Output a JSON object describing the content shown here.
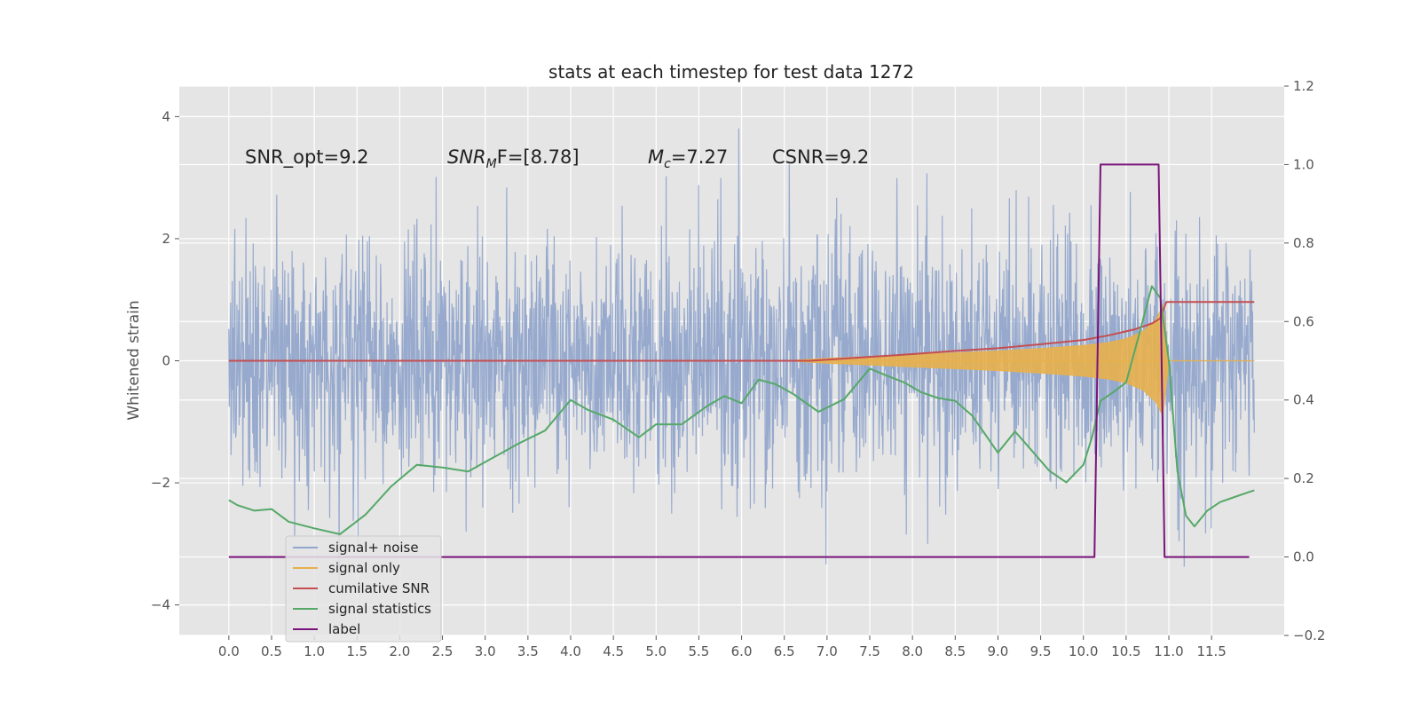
{
  "chart_data": {
    "type": "line",
    "title": "stats at each timestep for test data 1272",
    "ylabel": "Whitened strain",
    "xlabel": "",
    "xlim": [
      -0.58,
      12.35
    ],
    "ylim": [
      -4.5,
      4.5
    ],
    "y2lim": [
      -0.2,
      1.2
    ],
    "grid": true,
    "legend_position": "lower-left",
    "x_ticks": [
      "0.0",
      "0.5",
      "1.0",
      "1.5",
      "2.0",
      "2.5",
      "3.0",
      "3.5",
      "4.0",
      "4.5",
      "5.0",
      "5.5",
      "6.0",
      "6.5",
      "7.0",
      "7.5",
      "8.0",
      "8.5",
      "9.0",
      "9.5",
      "10.0",
      "10.5",
      "11.0",
      "11.5"
    ],
    "y_ticks": [
      "4",
      "2",
      "0",
      "−2",
      "−4"
    ],
    "y2_ticks": [
      "1.2",
      "1.0",
      "0.8",
      "0.6",
      "0.4",
      "0.2",
      "0.0",
      "−0.2"
    ],
    "annotations": {
      "snr_opt": "SNR_opt=9.2",
      "snr_mf_base": "SNR",
      "snr_mf_sub": "M",
      "snr_mf_rest": "F=[8.78]",
      "mc_base": "M",
      "mc_sub": "c",
      "mc_rest": "=7.27",
      "csnr": "CSNR=9.2"
    },
    "series": [
      {
        "name": "signal+ noise",
        "axis": "left",
        "color": "#92a6cc",
        "description": "whitened noise ~N(0,1) sampled densely over 0-12 s",
        "x_range": [
          0,
          12.0
        ],
        "spread_sigma": 1.0
      },
      {
        "name": "signal only",
        "axis": "left",
        "color": "#e8b04c",
        "envelope": {
          "x": [
            6.5,
            7.0,
            7.5,
            8.0,
            8.5,
            9.0,
            9.5,
            10.0,
            10.3,
            10.5,
            10.7,
            10.85,
            10.93,
            11.0,
            12.0
          ],
          "amp": [
            0.0,
            0.04,
            0.07,
            0.1,
            0.13,
            0.16,
            0.2,
            0.25,
            0.3,
            0.36,
            0.48,
            0.68,
            0.9,
            0.0,
            0.0
          ]
        }
      },
      {
        "name": "cumilative SNR",
        "axis": "right",
        "color": "#c44e52",
        "x": [
          0.0,
          6.8,
          7.0,
          7.5,
          8.0,
          8.5,
          9.0,
          9.5,
          10.0,
          10.3,
          10.6,
          10.8,
          10.9,
          10.97,
          12.0
        ],
        "values": [
          0.5,
          0.5,
          0.503,
          0.51,
          0.517,
          0.525,
          0.532,
          0.542,
          0.553,
          0.565,
          0.58,
          0.595,
          0.608,
          0.65,
          0.65
        ]
      },
      {
        "name": "signal statistics",
        "axis": "right",
        "color": "#55a868",
        "x": [
          0.0,
          0.1,
          0.3,
          0.5,
          0.7,
          1.0,
          1.3,
          1.6,
          1.9,
          2.2,
          2.5,
          2.8,
          3.1,
          3.4,
          3.7,
          4.0,
          4.2,
          4.5,
          4.8,
          5.0,
          5.3,
          5.6,
          5.8,
          6.0,
          6.2,
          6.4,
          6.6,
          6.9,
          7.2,
          7.5,
          7.7,
          7.9,
          8.1,
          8.3,
          8.5,
          8.7,
          9.0,
          9.2,
          9.4,
          9.6,
          9.8,
          10.0,
          10.1,
          10.2,
          10.35,
          10.5,
          10.65,
          10.8,
          10.9,
          11.0,
          11.1,
          11.2,
          11.3,
          11.45,
          11.6,
          11.8,
          12.0
        ],
        "values": [
          0.145,
          0.132,
          0.118,
          0.122,
          0.09,
          0.073,
          0.058,
          0.108,
          0.18,
          0.235,
          0.228,
          0.218,
          0.254,
          0.29,
          0.322,
          0.4,
          0.375,
          0.35,
          0.305,
          0.338,
          0.338,
          0.385,
          0.41,
          0.392,
          0.452,
          0.44,
          0.416,
          0.37,
          0.402,
          0.48,
          0.462,
          0.445,
          0.42,
          0.405,
          0.398,
          0.36,
          0.266,
          0.32,
          0.27,
          0.22,
          0.19,
          0.235,
          0.305,
          0.398,
          0.42,
          0.445,
          0.565,
          0.69,
          0.66,
          0.5,
          0.22,
          0.105,
          0.078,
          0.118,
          0.14,
          0.155,
          0.17
        ]
      },
      {
        "name": "label",
        "axis": "right",
        "color": "#7a147a",
        "x": [
          0.0,
          10.13,
          10.2,
          10.88,
          10.95,
          11.94
        ],
        "values": [
          0.0,
          0.0,
          1.0,
          1.0,
          0.0,
          0.0
        ]
      }
    ]
  }
}
